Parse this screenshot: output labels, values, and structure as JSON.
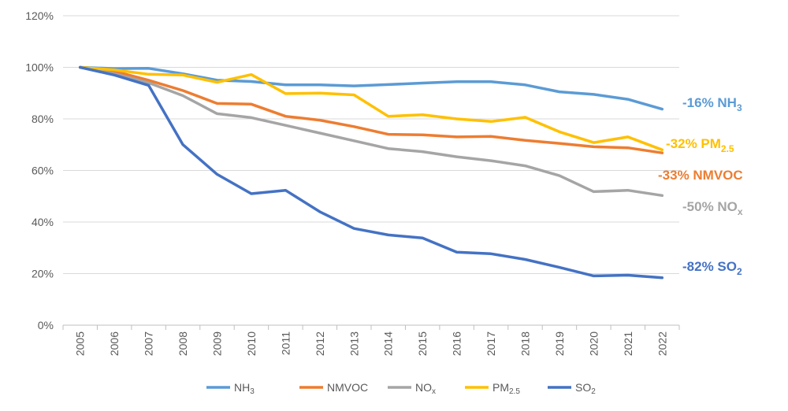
{
  "chart_data": {
    "type": "line",
    "title": "",
    "xlabel": "",
    "ylabel": "",
    "x": [
      "2005",
      "2006",
      "2007",
      "2008",
      "2009",
      "2010",
      "2011",
      "2012",
      "2013",
      "2014",
      "2015",
      "2016",
      "2017",
      "2018",
      "2019",
      "2020",
      "2021",
      "2022"
    ],
    "y_ticks": [
      "0%",
      "20%",
      "40%",
      "60%",
      "80%",
      "100%",
      "120%"
    ],
    "ylim": [
      0,
      120
    ],
    "grid": true,
    "legend_position": "bottom",
    "series": [
      {
        "name": "NH",
        "name_sub": "3",
        "color": "#5B9BD5",
        "values": [
          100,
          99.5,
          99.6,
          97.5,
          95,
          94.5,
          93.2,
          93.2,
          92.8,
          93.3,
          93.9,
          94.4,
          94.4,
          93.2,
          90.5,
          89.5,
          87.6,
          83.8
        ],
        "end_label": "-16% NH",
        "end_label_sub": "3"
      },
      {
        "name": "NMVOC",
        "name_sub": "",
        "color": "#ED7D31",
        "values": [
          100,
          98.5,
          95,
          91,
          86,
          85.7,
          81,
          79.5,
          77,
          74,
          73.8,
          73,
          73.2,
          71.7,
          70.5,
          69.2,
          68.8,
          66.8
        ],
        "end_label": "-33% NMVOC",
        "end_label_sub": ""
      },
      {
        "name": "NO",
        "name_sub": "x",
        "color": "#A5A5A5",
        "values": [
          100,
          97.5,
          94,
          89,
          82,
          80.5,
          77.5,
          74.5,
          71.5,
          68.5,
          67.3,
          65.3,
          63.8,
          61.8,
          58,
          51.8,
          52.3,
          50.3
        ],
        "end_label": "-50% NO",
        "end_label_sub": "x"
      },
      {
        "name": "PM",
        "name_sub": "2.5",
        "color": "#FFC000",
        "values": [
          100,
          99,
          97.3,
          97,
          94.2,
          97.2,
          89.8,
          90,
          89.3,
          81,
          81.6,
          80,
          79,
          80.6,
          75,
          70.8,
          73,
          68
        ],
        "end_label": "-32% PM",
        "end_label_sub": "2.5"
      },
      {
        "name": "SO",
        "name_sub": "2",
        "color": "#4472C4",
        "values": [
          100,
          97,
          93,
          70,
          58.5,
          51,
          52.3,
          44,
          37.5,
          35,
          33.8,
          28.3,
          27.7,
          25.5,
          22.4,
          19.1,
          19.4,
          18.4
        ],
        "end_label": "-82% SO",
        "end_label_sub": "2"
      }
    ]
  }
}
